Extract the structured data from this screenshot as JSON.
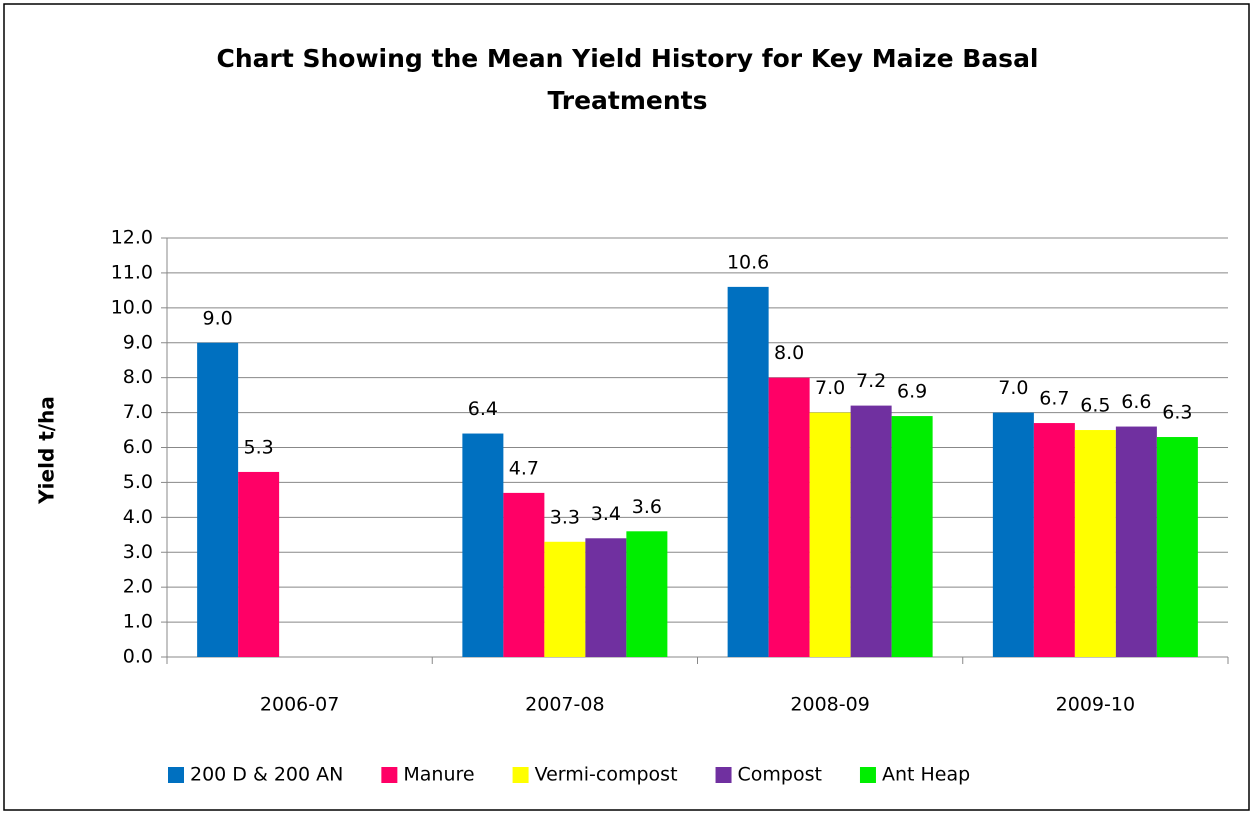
{
  "chart_data": {
    "type": "bar",
    "title": "Chart Showing the Mean Yield History for Key Maize Basal Treatments",
    "y_label": "Yield t/ha",
    "categories": [
      "2006-07",
      "2007-08",
      "2008-09",
      "2009-10"
    ],
    "series": [
      {
        "name": "200 D & 200 AN",
        "color": "#0070c0",
        "values": [
          9.0,
          6.4,
          10.6,
          7.0
        ],
        "value_labels": [
          "9.0",
          "6.4",
          "10.6",
          "7.0"
        ]
      },
      {
        "name": "Manure",
        "color": "#ff0066",
        "values": [
          5.3,
          4.7,
          8.0,
          6.7
        ],
        "value_labels": [
          "5.3",
          "4.7",
          "8.0",
          "6.7"
        ]
      },
      {
        "name": "Vermi-compost",
        "color": "#ffff00",
        "values": [
          null,
          3.3,
          7.0,
          6.5
        ],
        "value_labels": [
          null,
          "3.3",
          "7.0",
          "6.5"
        ]
      },
      {
        "name": "Compost",
        "color": "#7030a0",
        "values": [
          null,
          3.4,
          7.2,
          6.6
        ],
        "value_labels": [
          null,
          "3.4",
          "7.2",
          "6.6"
        ]
      },
      {
        "name": "Ant Heap",
        "color": "#00ee00",
        "values": [
          null,
          3.6,
          6.9,
          6.3
        ],
        "value_labels": [
          null,
          "3.6",
          "6.9",
          "6.3"
        ]
      }
    ],
    "ylim": [
      0,
      12
    ],
    "yticks": [
      {
        "value": 0,
        "label": "0.0"
      },
      {
        "value": 1,
        "label": "1.0"
      },
      {
        "value": 2,
        "label": "2.0"
      },
      {
        "value": 3,
        "label": "3.0"
      },
      {
        "value": 4,
        "label": "4.0"
      },
      {
        "value": 5,
        "label": "5.0"
      },
      {
        "value": 6,
        "label": "6.0"
      },
      {
        "value": 7,
        "label": "7.0"
      },
      {
        "value": 8,
        "label": "8.0"
      },
      {
        "value": 9,
        "label": "9.0"
      },
      {
        "value": 10,
        "label": "10.0"
      },
      {
        "value": 11,
        "label": "11.0"
      },
      {
        "value": 12,
        "label": "12.0"
      }
    ],
    "grid": true,
    "legend": "bottom"
  }
}
